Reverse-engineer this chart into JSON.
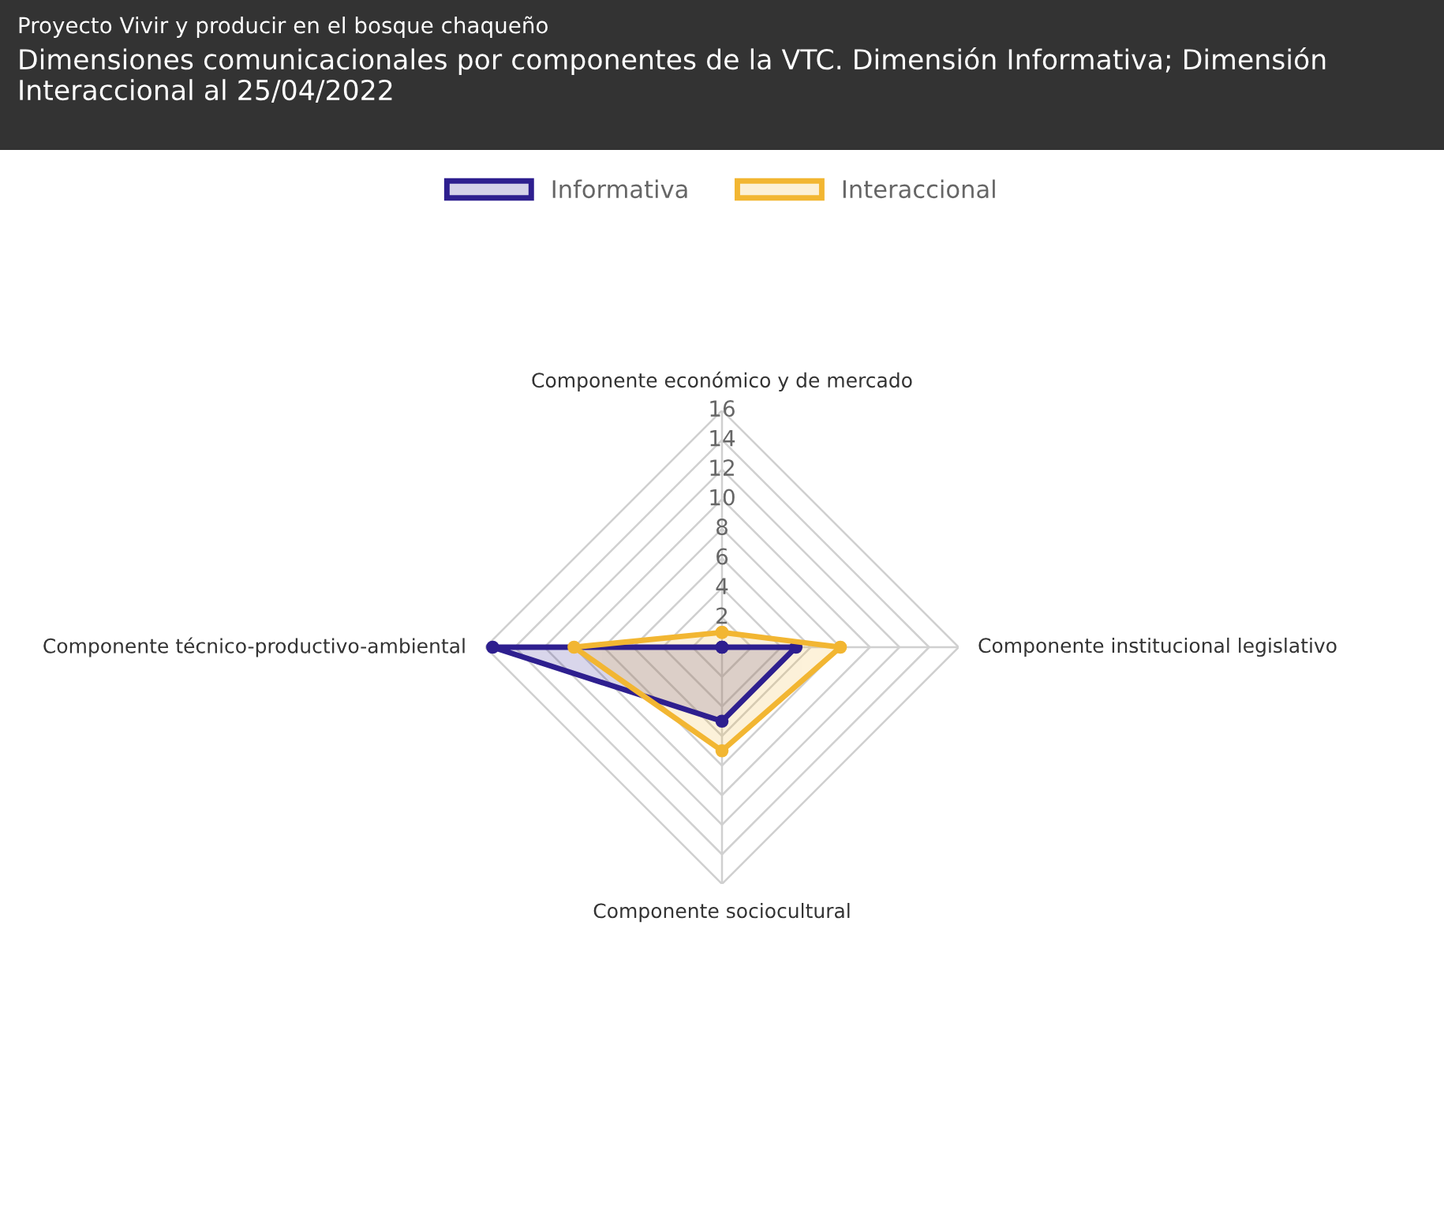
{
  "chart_data": {
    "type": "radar",
    "title": "Proyecto Vivir y producir en el bosque chaqueño",
    "subtitle": "Dimensiones comunicacionales por componentes de la VTC. Dimensión Informativa; Dimensión Interaccional al 25/04/2022",
    "categories": [
      "Componente económico y de mercado",
      "Componente institucional legislativo",
      "Componente sociocultural",
      "Componente técnico-productivo-ambiental"
    ],
    "series": [
      {
        "name": "Informativa",
        "color": "#2e1f8f",
        "values": [
          0,
          5,
          5,
          15.5
        ]
      },
      {
        "name": "Interaccional",
        "color": "#f2b632",
        "values": [
          1,
          8,
          7,
          10
        ]
      }
    ],
    "ylim": [
      0,
      16
    ],
    "yticks": [
      2,
      4,
      6,
      8,
      10,
      12,
      14,
      16
    ],
    "grid": true,
    "legend": "top",
    "marker": "circle"
  }
}
